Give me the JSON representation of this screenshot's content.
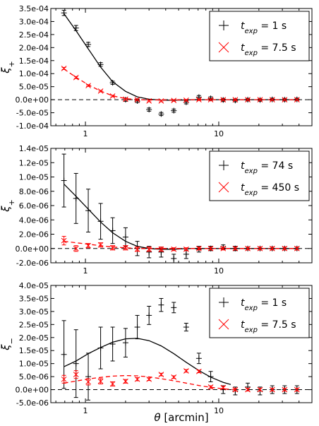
{
  "chart_data": [
    {
      "type": "scatter",
      "xscale": "log",
      "xlim": [
        0.55,
        50
      ],
      "ylim": [
        -0.0001,
        0.00035
      ],
      "ylabel": "ξ+",
      "xlabel": "",
      "yticks": [
        "3.5e-04",
        "3.0e-04",
        "2.5e-04",
        "2.0e-04",
        "1.5e-04",
        "1.0e-04",
        "5.0e-05",
        "0.0e+00",
        "-5.0e-05",
        "-1.0e-04"
      ],
      "ytick_values": [
        0.00035,
        0.0003,
        0.00025,
        0.0002,
        0.00015,
        0.0001,
        5e-05,
        0,
        -5e-05,
        -0.0001
      ],
      "xticks": [
        "1",
        "10"
      ],
      "xtick_values": [
        1,
        10
      ],
      "zero_line": true,
      "legend_position": "top-right",
      "series": [
        {
          "name_prefix": "t",
          "name_sub": "exp",
          "name_suffix": " = 1 s",
          "marker": "plus",
          "color": "#000000",
          "x": [
            0.69,
            0.85,
            1.05,
            1.3,
            1.6,
            2.0,
            2.45,
            3.0,
            3.7,
            4.6,
            5.7,
            7.1,
            8.7,
            10.8,
            13.3,
            16.5,
            20.4,
            25.2,
            31.2,
            38.6
          ],
          "y": [
            0.000333,
            0.000275,
            0.000212,
            0.000135,
            6.5e-05,
            0,
            -5e-06,
            -3.8e-05,
            -5.5e-05,
            -4.2e-05,
            -1e-05,
            1e-05,
            5e-06,
            -1e-06,
            -3e-06,
            0,
            -1e-06,
            1e-06,
            0,
            1e-06
          ],
          "err": [
            1e-05,
            1e-05,
            8e-06,
            7e-06,
            6e-06,
            6e-06,
            6e-06,
            6e-06,
            6e-06,
            6e-06,
            6e-06,
            6e-06,
            6e-06,
            6e-06,
            5e-06,
            5e-06,
            5e-06,
            5e-06,
            5e-06,
            5e-06
          ]
        },
        {
          "name_prefix": "t",
          "name_sub": "exp",
          "name_suffix": " = 7.5 s",
          "marker": "x",
          "color": "#ff0000",
          "x": [
            0.69,
            0.85,
            1.05,
            1.3,
            1.6,
            2.0,
            2.45,
            3.0,
            3.7,
            4.6,
            5.7,
            7.1,
            8.7,
            10.8,
            13.3,
            16.5,
            20.4,
            25.2,
            31.2,
            38.6
          ],
          "y": [
            0.00012,
            8.5e-05,
            5.4e-05,
            3.3e-05,
            1.4e-05,
            2e-06,
            0,
            -5e-06,
            -5e-06,
            -3e-06,
            -2e-06,
            0,
            0,
            0,
            0,
            0,
            0,
            0,
            0,
            0
          ],
          "err": [
            4e-06,
            4e-06,
            3e-06,
            3e-06,
            3e-06,
            3e-06,
            3e-06,
            3e-06,
            3e-06,
            3e-06,
            3e-06,
            3e-06,
            3e-06,
            3e-06,
            3e-06,
            3e-06,
            3e-06,
            3e-06,
            3e-06,
            3e-06
          ]
        }
      ],
      "model_lines": [
        {
          "color": "#000000",
          "dash": false,
          "x": [
            0.69,
            0.85,
            1.05,
            1.3,
            1.6,
            2.0,
            2.45,
            3.0,
            3.7,
            4.6,
            5.7,
            7.1,
            8.7,
            10.8,
            13.3,
            16.5,
            20.4,
            25.2,
            31.2,
            38.6
          ],
          "y": [
            0.00033,
            0.000265,
            0.000195,
            0.000125,
            6.9e-05,
            3.2e-05,
            1.1e-05,
            2e-06,
            -2e-06,
            -2e-06,
            -1e-06,
            0,
            0,
            0,
            0,
            0,
            0,
            0,
            0,
            0
          ]
        },
        {
          "color": "#ff0000",
          "dash": true,
          "x": [
            0.69,
            0.85,
            1.05,
            1.3,
            1.6,
            2.0,
            2.45,
            3.0,
            3.7,
            4.6,
            5.7,
            7.1,
            8.7,
            10.8,
            13.3,
            16.5,
            20.4,
            25.2,
            31.2,
            38.6
          ],
          "y": [
            0.000118,
            8.6e-05,
            5.7e-05,
            3.3e-05,
            1.5e-05,
            4e-06,
            0,
            -1e-06,
            -1e-06,
            -1e-06,
            0,
            0,
            0,
            0,
            0,
            0,
            0,
            0,
            0,
            0
          ]
        }
      ]
    },
    {
      "type": "scatter",
      "xscale": "log",
      "xlim": [
        0.55,
        50
      ],
      "ylim": [
        -2e-06,
        1.4e-05
      ],
      "ylabel": "ξ+",
      "xlabel": "",
      "yticks": [
        "1.4e-05",
        "1.2e-05",
        "1.0e-05",
        "8.0e-06",
        "6.0e-06",
        "4.0e-06",
        "2.0e-06",
        "0.0e+00",
        "-2.0e-06"
      ],
      "ytick_values": [
        1.4e-05,
        1.2e-05,
        1e-05,
        8e-06,
        6e-06,
        4e-06,
        2e-06,
        0,
        -2e-06
      ],
      "xticks": [
        "1",
        "10"
      ],
      "xtick_values": [
        1,
        10
      ],
      "zero_line": true,
      "legend_position": "top-right",
      "series": [
        {
          "name_prefix": "t",
          "name_sub": "exp",
          "name_suffix": " = 74 s",
          "marker": "plus",
          "color": "#000000",
          "x": [
            0.69,
            0.85,
            1.05,
            1.3,
            1.6,
            2.0,
            2.45,
            3.0,
            3.7,
            4.6,
            5.7,
            7.1,
            8.7,
            10.8,
            13.3,
            16.5,
            20.4,
            25.2,
            31.2,
            38.6
          ],
          "y": [
            9.5e-06,
            7e-06,
            5.3e-06,
            3.8e-06,
            2.5e-06,
            1.6e-06,
            0,
            -5e-07,
            -5e-07,
            -1.4e-06,
            -8e-07,
            -1e-07,
            0,
            2e-07,
            0,
            0,
            0,
            0,
            0,
            0
          ],
          "err": [
            3.7e-06,
            3.5e-06,
            3e-06,
            2.5e-06,
            1.8e-06,
            1.3e-06,
            1e-06,
            8e-07,
            7e-07,
            6e-07,
            6e-07,
            4e-07,
            3e-07,
            3e-07,
            3e-07,
            2e-07,
            2e-07,
            2e-07,
            2e-07,
            2e-07
          ]
        },
        {
          "name_prefix": "t",
          "name_sub": "exp",
          "name_suffix": " = 450 s",
          "marker": "x",
          "color": "#ff0000",
          "x": [
            0.69,
            0.85,
            1.05,
            1.3,
            1.6,
            2.0,
            2.45,
            3.0,
            3.7,
            4.6,
            5.7,
            7.1,
            8.7,
            10.8,
            13.3,
            16.5,
            20.4,
            25.2,
            31.2,
            38.6
          ],
          "y": [
            1.1e-06,
            0,
            4e-07,
            5e-07,
            1e-07,
            1e-07,
            -1e-07,
            -1e-07,
            -1e-07,
            -1e-07,
            -1e-07,
            0,
            0,
            0,
            0,
            0,
            0,
            0,
            0,
            0
          ],
          "err": [
            6e-07,
            4e-07,
            3e-07,
            3e-07,
            3e-07,
            3e-07,
            3e-07,
            3e-07,
            3e-07,
            2e-07,
            2e-07,
            2e-07,
            2e-07,
            2e-07,
            2e-07,
            2e-07,
            2e-07,
            2e-07,
            2e-07,
            2e-07
          ]
        }
      ],
      "model_lines": [
        {
          "color": "#000000",
          "dash": false,
          "x": [
            0.69,
            0.85,
            1.05,
            1.3,
            1.6,
            2.0,
            2.45,
            3.0,
            3.7,
            4.6,
            5.7,
            7.1,
            8.7,
            10.8,
            13.3,
            16.5,
            20.4,
            25.2,
            31.2,
            38.6
          ],
          "y": [
            9e-06,
            7.3e-06,
            5.5e-06,
            3.7e-06,
            2.2e-06,
            1e-06,
            3e-07,
            0,
            -1e-07,
            -1e-07,
            0,
            0,
            0,
            0,
            0,
            0,
            0,
            0,
            0,
            0
          ]
        },
        {
          "color": "#ff0000",
          "dash": true,
          "x": [
            0.69,
            0.85,
            1.05,
            1.3,
            1.6,
            2.0,
            2.45,
            3.0,
            3.7,
            4.6,
            5.7,
            7.1,
            8.7,
            10.8,
            13.3,
            16.5,
            20.4,
            25.2,
            31.2,
            38.6
          ],
          "y": [
            1e-06,
            8e-07,
            6e-07,
            4e-07,
            2e-07,
            1e-07,
            0,
            0,
            0,
            0,
            0,
            0,
            0,
            0,
            0,
            0,
            0,
            0,
            0,
            0
          ]
        }
      ]
    },
    {
      "type": "scatter",
      "xscale": "log",
      "xlim": [
        0.55,
        50
      ],
      "ylim": [
        -5e-06,
        4e-05
      ],
      "ylabel": "ξ−",
      "xlabel_prefix": "θ",
      "xlabel_suffix": " [arcmin]",
      "yticks": [
        "4.0e-05",
        "3.5e-05",
        "3.0e-05",
        "2.5e-05",
        "2.0e-05",
        "1.5e-05",
        "1.0e-05",
        "5.0e-06",
        "0.0e+00",
        "-5.0e-06"
      ],
      "ytick_values": [
        4e-05,
        3.5e-05,
        3e-05,
        2.5e-05,
        2e-05,
        1.5e-05,
        1e-05,
        5e-06,
        0,
        -5e-06
      ],
      "xticks": [
        "1",
        "10"
      ],
      "xtick_values": [
        1,
        10
      ],
      "zero_line": true,
      "legend_position": "top-right",
      "series": [
        {
          "name_prefix": "t",
          "name_sub": "exp",
          "name_suffix": " = 1 s",
          "marker": "plus",
          "color": "#000000",
          "x": [
            0.69,
            0.85,
            1.05,
            1.3,
            1.6,
            2.0,
            2.45,
            3.0,
            3.7,
            4.6,
            5.7,
            7.1,
            8.7,
            10.8,
            13.3,
            16.5,
            20.4,
            25.2,
            31.2,
            38.6
          ],
          "y": [
            1.35e-05,
            1e-05,
            5e-06,
            1.6e-05,
            1.75e-05,
            1.8e-05,
            2.4e-05,
            2.85e-05,
            3.25e-05,
            3.15e-05,
            2.4e-05,
            1.2e-05,
            5e-06,
            0,
            -5e-07,
            1e-06,
            -5e-07,
            0,
            0,
            0
          ],
          "err": [
            1.3e-05,
            1.3e-05,
            9e-06,
            8e-06,
            6.5e-06,
            5.5e-06,
            4.5e-06,
            3.5e-06,
            2.5e-06,
            2e-06,
            1.5e-06,
            2e-06,
            2e-06,
            1.5e-06,
            1.5e-06,
            1.5e-06,
            1.5e-06,
            1.5e-06,
            1.5e-06,
            1.5e-06
          ]
        },
        {
          "name_prefix": "t",
          "name_sub": "exp",
          "name_suffix": " = 7.5 s",
          "marker": "x",
          "color": "#ff0000",
          "x": [
            0.69,
            0.85,
            1.05,
            1.3,
            1.6,
            2.0,
            2.45,
            3.0,
            3.7,
            4.6,
            5.7,
            7.1,
            8.7,
            10.8,
            13.3,
            16.5,
            20.4,
            25.2,
            31.2,
            38.6
          ],
          "y": [
            4e-06,
            5.8e-06,
            3e-06,
            3.2e-06,
            2.2e-06,
            3.2e-06,
            4e-06,
            4e-06,
            5.8e-06,
            4.8e-06,
            7.2e-06,
            7e-06,
            1e-06,
            8e-07,
            0,
            0,
            0,
            0,
            0,
            0
          ],
          "err": [
            1.5e-06,
            1.5e-06,
            1.2e-06,
            1e-06,
            8e-07,
            7e-07,
            6e-07,
            5e-07,
            5e-07,
            5e-07,
            5e-07,
            5e-07,
            5e-07,
            5e-07,
            5e-07,
            5e-07,
            5e-07,
            5e-07,
            5e-07,
            5e-07
          ]
        }
      ],
      "model_lines": [
        {
          "color": "#000000",
          "dash": false,
          "x": [
            0.69,
            0.85,
            1.05,
            1.3,
            1.6,
            2.0,
            2.45,
            3.0,
            3.7,
            4.6,
            5.7,
            7.1,
            8.7,
            10.8,
            12.3
          ],
          "y": [
            8.8e-06,
            1.1e-05,
            1.38e-05,
            1.62e-05,
            1.82e-05,
            1.95e-05,
            1.97e-05,
            1.88e-05,
            1.68e-05,
            1.38e-05,
            1.05e-05,
            7.3e-06,
            4.8e-06,
            2.8e-06,
            2e-06
          ]
        },
        {
          "color": "#ff0000",
          "dash": true,
          "x": [
            0.69,
            0.85,
            1.05,
            1.3,
            1.6,
            2.0,
            2.45,
            3.0,
            3.7,
            4.6,
            5.7,
            7.1,
            8.7,
            10.8,
            13.3
          ],
          "y": [
            2.5e-06,
            3.3e-06,
            4.1e-06,
            4.7e-06,
            5.2e-06,
            5.4e-06,
            5.3e-06,
            4.9e-06,
            4.2e-06,
            3.4e-06,
            2.5e-06,
            1.6e-06,
            9e-07,
            3e-07,
            0
          ]
        }
      ]
    }
  ]
}
